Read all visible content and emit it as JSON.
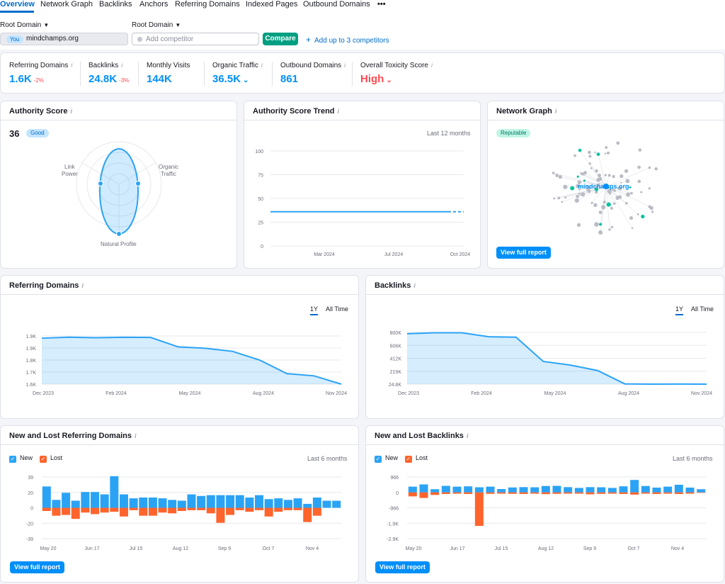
{
  "tabs": [
    "Overview",
    "Network Graph",
    "Backlinks",
    "Anchors",
    "Referring Domains",
    "Indexed Pages",
    "Outbound Domains",
    "•••"
  ],
  "controls": {
    "root_domain_label": "Root Domain",
    "you_badge": "You",
    "domain": "mindchamps.org",
    "competitor_placeholder": "Add competitor",
    "compare_label": "Compare",
    "add_competitors_label": "Add up to 3 competitors"
  },
  "metrics": [
    {
      "label": "Referring Domains",
      "value": "1.6K",
      "delta": "-2%"
    },
    {
      "label": "Backlinks",
      "value": "24.8K",
      "delta": "-3%"
    },
    {
      "label": "Monthly Visits",
      "value": "144K",
      "delta": ""
    },
    {
      "label": "Organic Traffic",
      "value": "36.5K",
      "delta": ""
    },
    {
      "label": "Outbound Domains",
      "value": "861",
      "delta": ""
    },
    {
      "label": "Overall Toxicity Score",
      "value": "High",
      "delta": ""
    }
  ],
  "authority": {
    "title": "Authority Score",
    "score": "36",
    "badge": "Good",
    "axes": [
      "Link\nPower",
      "Organic\nTraffic",
      "Natural Profile"
    ]
  },
  "trend": {
    "title": "Authority Score Trend",
    "period": "Last 12 months"
  },
  "network": {
    "title": "Network Graph",
    "badge": "Reputable",
    "center_label": "mindchamps.org",
    "button": "View full report"
  },
  "ref_domains": {
    "title": "Referring Domains",
    "range_tabs": [
      "1Y",
      "All Time"
    ]
  },
  "backlinks": {
    "title": "Backlinks",
    "range_tabs": [
      "1Y",
      "All Time"
    ]
  },
  "new_lost_rd": {
    "title": "New and Lost Referring Domains",
    "legend_new": "New",
    "legend_lost": "Lost",
    "period": "Last 6 months",
    "button": "View full report"
  },
  "new_lost_bl": {
    "title": "New and Lost Backlinks",
    "legend_new": "New",
    "legend_lost": "Lost",
    "period": "Last 6 months",
    "button": "View full report"
  },
  "colors": {
    "accent": "#008ff8",
    "green": "#009f81",
    "red": "#ff4953",
    "lost": "#ff642d"
  },
  "chart_data": [
    {
      "id": "authority_radar",
      "type": "radar",
      "axes": [
        "Link Power",
        "Organic Traffic",
        "Natural Profile"
      ],
      "values": [
        0.6,
        0.6,
        0.93
      ]
    },
    {
      "id": "authority_trend",
      "type": "line",
      "x_ticks": [
        "Mar 2024",
        "Jul 2024",
        "Oct 2024"
      ],
      "y_ticks": [
        "0",
        "25",
        "50",
        "75",
        "100"
      ],
      "ylim": [
        0,
        100
      ],
      "x": [
        0,
        11
      ],
      "values": [
        36,
        36
      ]
    },
    {
      "id": "referring_domains",
      "type": "area",
      "x_ticks": [
        "Dec 2023",
        "Feb 2024",
        "May 2024",
        "Aug 2024",
        "Nov 2024"
      ],
      "y_ticks": [
        "1.6K",
        "1.7K",
        "1.8K",
        "1.9K",
        "1.9K"
      ],
      "ylim": [
        1600,
        1920
      ],
      "x": [
        0,
        1,
        2,
        3,
        4,
        5,
        6,
        7,
        8,
        9,
        10,
        11
      ],
      "values": [
        1905,
        1912,
        1908,
        1911,
        1910,
        1848,
        1838,
        1818,
        1760,
        1670,
        1655,
        1600
      ]
    },
    {
      "id": "backlinks",
      "type": "area",
      "x_ticks": [
        "Dec 2023",
        "Feb 2024",
        "May 2024",
        "Aug 2024",
        "Nov 2024"
      ],
      "y_ticks": [
        "24.8K",
        "219K",
        "412K",
        "606K",
        "800K"
      ],
      "ylim": [
        24800,
        800000
      ],
      "x": [
        0,
        1,
        2,
        3,
        4,
        5,
        6,
        7,
        8,
        9,
        10,
        11
      ],
      "values": [
        780000,
        795000,
        795000,
        735000,
        728000,
        365000,
        310000,
        228000,
        28000,
        24800,
        26000,
        24800
      ]
    },
    {
      "id": "new_lost_referring_domains",
      "type": "bar",
      "x_ticks": [
        "May 20",
        "Jun 17",
        "Jul 15",
        "Aug 12",
        "Sep 9",
        "Oct 7",
        "Nov 4"
      ],
      "y_ticks": [
        "39",
        "20",
        "0",
        "-20",
        "-39"
      ],
      "ylim": [
        -39,
        39
      ],
      "series": [
        {
          "name": "New",
          "values": [
            27,
            10,
            19,
            9,
            20,
            20,
            17,
            40,
            17,
            12,
            13,
            13,
            12,
            10,
            9,
            17,
            15,
            16,
            16,
            16,
            16,
            13,
            16,
            11,
            12,
            10,
            12,
            5,
            13,
            9,
            9
          ]
        },
        {
          "name": "Lost",
          "values": [
            -4,
            -10,
            -9,
            -14,
            -6,
            -8,
            -6,
            -5,
            -11,
            -3,
            -10,
            -10,
            -6,
            -7,
            -4,
            -3,
            -3,
            -7,
            -19,
            -9,
            -3,
            -5,
            -3,
            -11,
            -5,
            -3,
            -3,
            -18,
            -10,
            0,
            0
          ]
        }
      ]
    },
    {
      "id": "new_lost_backlinks",
      "type": "bar",
      "x_ticks": [
        "May 20",
        "Jun 17",
        "Jul 15",
        "Aug 12",
        "Sep 9",
        "Oct 7",
        "Nov 4"
      ],
      "y_ticks": [
        "966",
        "0",
        "-966",
        "-1.9K",
        "-2.9K"
      ],
      "ylim": [
        -2900,
        966
      ],
      "series": [
        {
          "name": "New",
          "values": [
            360,
            500,
            200,
            410,
            360,
            380,
            320,
            360,
            210,
            310,
            330,
            320,
            400,
            410,
            330,
            280,
            330,
            320,
            280,
            380,
            780,
            400,
            300,
            360,
            480,
            300,
            200
          ]
        },
        {
          "name": "Lost",
          "values": [
            -250,
            -350,
            -160,
            -100,
            -80,
            -100,
            -2100,
            -90,
            -80,
            -90,
            -100,
            -80,
            -110,
            -90,
            -80,
            -80,
            -120,
            -90,
            -80,
            -100,
            -140,
            -80,
            -100,
            -80,
            -100,
            -80,
            -30
          ]
        }
      ]
    }
  ]
}
